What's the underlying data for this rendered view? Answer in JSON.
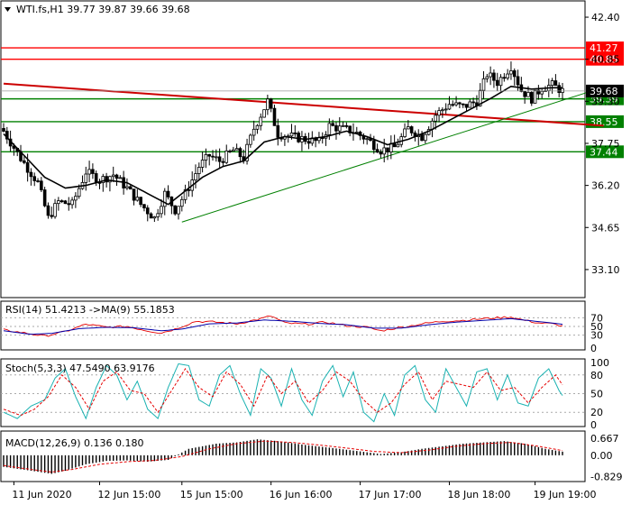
{
  "chart_data": {
    "type": "candlestick",
    "symbol_header": "WTI.fs,H1  39.77 39.87 39.66 39.68",
    "price_axis": {
      "ylim": [
        32.2,
        42.9
      ],
      "tick_labels": [
        "42.40",
        "40.85",
        "39.30",
        "37.75",
        "36.20",
        "34.65",
        "33.10"
      ],
      "tick_values": [
        42.4,
        40.85,
        39.3,
        37.75,
        36.2,
        34.65,
        33.1
      ],
      "current_price": "39.68"
    },
    "x_axis": {
      "time_labels": [
        "11 Jun 2020",
        "12 Jun 15:00",
        "15 Jun 15:00",
        "16 Jun 16:00",
        "17 Jun 17:00",
        "18 Jun 18:00",
        "19 Jun 19:00"
      ],
      "label_bar_index": [
        3,
        28,
        52,
        78,
        104,
        130,
        155
      ]
    },
    "levels": [
      {
        "label": "41.27",
        "value": 41.27,
        "color": "#ff0000"
      },
      {
        "label": "40.85",
        "value": 40.85,
        "color": "#ff0000"
      },
      {
        "label": "39.39",
        "value": 39.39,
        "color": "#008000"
      },
      {
        "label": "38.55",
        "value": 38.55,
        "color": "#008000"
      },
      {
        "label": "37.44",
        "value": 37.44,
        "color": "#008000"
      }
    ],
    "trendlines": [
      {
        "color": "#cc0000",
        "from": {
          "bar": 0,
          "price": 39.95
        },
        "to": {
          "bar": 175,
          "price": 38.4
        }
      },
      {
        "color": "#008000",
        "from": {
          "bar": 52,
          "price": 34.85
        },
        "to": {
          "bar": 172,
          "price": 39.7
        }
      }
    ],
    "close_anchors": [
      [
        0,
        38.2
      ],
      [
        5,
        37.2
      ],
      [
        10,
        36.3
      ],
      [
        13,
        35.0
      ],
      [
        16,
        35.6
      ],
      [
        20,
        35.5
      ],
      [
        24,
        36.7
      ],
      [
        28,
        36.4
      ],
      [
        32,
        36.6
      ],
      [
        36,
        36.1
      ],
      [
        40,
        35.5
      ],
      [
        44,
        35.0
      ],
      [
        47,
        35.9
      ],
      [
        50,
        35.3
      ],
      [
        53,
        35.9
      ],
      [
        57,
        36.9
      ],
      [
        60,
        37.3
      ],
      [
        63,
        37.1
      ],
      [
        67,
        37.5
      ],
      [
        70,
        37.2
      ],
      [
        73,
        38.3
      ],
      [
        77,
        39.3
      ],
      [
        80,
        38.1
      ],
      [
        84,
        38.0
      ],
      [
        88,
        37.9
      ],
      [
        92,
        37.8
      ],
      [
        95,
        38.4
      ],
      [
        98,
        38.3
      ],
      [
        102,
        38.2
      ],
      [
        106,
        37.9
      ],
      [
        110,
        37.5
      ],
      [
        114,
        37.6
      ],
      [
        118,
        38.3
      ],
      [
        122,
        38.0
      ],
      [
        126,
        38.8
      ],
      [
        130,
        39.2
      ],
      [
        134,
        39.1
      ],
      [
        138,
        39.3
      ],
      [
        141,
        40.3
      ],
      [
        144,
        40.0
      ],
      [
        148,
        40.6
      ],
      [
        151,
        39.7
      ],
      [
        154,
        39.4
      ],
      [
        157,
        39.8
      ],
      [
        160,
        39.9
      ],
      [
        163,
        39.68
      ]
    ],
    "ma_anchors": [
      [
        0,
        38.1
      ],
      [
        6,
        37.3
      ],
      [
        12,
        36.5
      ],
      [
        18,
        36.1
      ],
      [
        24,
        36.2
      ],
      [
        30,
        36.4
      ],
      [
        36,
        36.3
      ],
      [
        42,
        35.9
      ],
      [
        48,
        35.5
      ],
      [
        52,
        35.9
      ],
      [
        58,
        36.5
      ],
      [
        64,
        36.9
      ],
      [
        70,
        37.1
      ],
      [
        76,
        37.8
      ],
      [
        82,
        38.0
      ],
      [
        88,
        37.9
      ],
      [
        94,
        38.0
      ],
      [
        100,
        38.2
      ],
      [
        106,
        38.0
      ],
      [
        112,
        37.7
      ],
      [
        118,
        37.9
      ],
      [
        124,
        38.2
      ],
      [
        130,
        38.6
      ],
      [
        136,
        39.0
      ],
      [
        142,
        39.4
      ],
      [
        148,
        39.85
      ],
      [
        154,
        39.75
      ],
      [
        160,
        39.8
      ],
      [
        163,
        39.8
      ]
    ],
    "rsi": {
      "label": "RSI(14) 51.4213 ->MA(9) 55.1853",
      "ylim": [
        0,
        100
      ],
      "levels": [
        70,
        50,
        30
      ],
      "level_labels": [
        "70",
        "50",
        "30",
        "0"
      ],
      "rsi_anchors": [
        [
          0,
          42
        ],
        [
          6,
          35
        ],
        [
          12,
          28
        ],
        [
          18,
          38
        ],
        [
          24,
          55
        ],
        [
          30,
          48
        ],
        [
          36,
          50
        ],
        [
          42,
          40
        ],
        [
          46,
          35
        ],
        [
          50,
          44
        ],
        [
          56,
          62
        ],
        [
          62,
          60
        ],
        [
          68,
          56
        ],
        [
          74,
          66
        ],
        [
          78,
          74
        ],
        [
          82,
          58
        ],
        [
          88,
          55
        ],
        [
          94,
          60
        ],
        [
          100,
          52
        ],
        [
          106,
          48
        ],
        [
          110,
          40
        ],
        [
          116,
          48
        ],
        [
          122,
          56
        ],
        [
          128,
          62
        ],
        [
          134,
          64
        ],
        [
          140,
          68
        ],
        [
          144,
          70
        ],
        [
          148,
          72
        ],
        [
          152,
          64
        ],
        [
          156,
          58
        ],
        [
          160,
          56
        ],
        [
          163,
          51
        ]
      ],
      "ma_anchors": [
        [
          0,
          40
        ],
        [
          8,
          32
        ],
        [
          14,
          34
        ],
        [
          22,
          45
        ],
        [
          30,
          48
        ],
        [
          38,
          47
        ],
        [
          46,
          40
        ],
        [
          52,
          44
        ],
        [
          60,
          56
        ],
        [
          68,
          58
        ],
        [
          76,
          65
        ],
        [
          84,
          62
        ],
        [
          92,
          57
        ],
        [
          100,
          54
        ],
        [
          108,
          46
        ],
        [
          116,
          46
        ],
        [
          124,
          54
        ],
        [
          132,
          60
        ],
        [
          140,
          64
        ],
        [
          148,
          68
        ],
        [
          154,
          63
        ],
        [
          160,
          58
        ],
        [
          163,
          55
        ]
      ]
    },
    "stoch": {
      "label": "Stoch(5,3,3) 47.5490 63.9176",
      "ylim": [
        0,
        100
      ],
      "levels": [
        80,
        50,
        20
      ],
      "level_labels": [
        "100",
        "80",
        "50",
        "20",
        "0"
      ],
      "main_anchors": [
        [
          0,
          20
        ],
        [
          4,
          10
        ],
        [
          8,
          30
        ],
        [
          12,
          40
        ],
        [
          15,
          75
        ],
        [
          18,
          90
        ],
        [
          21,
          45
        ],
        [
          24,
          10
        ],
        [
          27,
          60
        ],
        [
          30,
          95
        ],
        [
          33,
          80
        ],
        [
          36,
          40
        ],
        [
          39,
          70
        ],
        [
          42,
          25
        ],
        [
          45,
          10
        ],
        [
          48,
          60
        ],
        [
          51,
          98
        ],
        [
          54,
          95
        ],
        [
          57,
          40
        ],
        [
          60,
          30
        ],
        [
          63,
          80
        ],
        [
          66,
          95
        ],
        [
          69,
          50
        ],
        [
          72,
          15
        ],
        [
          75,
          90
        ],
        [
          78,
          75
        ],
        [
          81,
          30
        ],
        [
          84,
          90
        ],
        [
          87,
          40
        ],
        [
          90,
          15
        ],
        [
          93,
          70
        ],
        [
          96,
          95
        ],
        [
          99,
          45
        ],
        [
          102,
          85
        ],
        [
          105,
          20
        ],
        [
          108,
          5
        ],
        [
          111,
          50
        ],
        [
          114,
          15
        ],
        [
          117,
          80
        ],
        [
          120,
          95
        ],
        [
          123,
          40
        ],
        [
          126,
          20
        ],
        [
          129,
          90
        ],
        [
          132,
          60
        ],
        [
          135,
          30
        ],
        [
          138,
          85
        ],
        [
          141,
          90
        ],
        [
          144,
          40
        ],
        [
          147,
          80
        ],
        [
          150,
          35
        ],
        [
          153,
          30
        ],
        [
          156,
          75
        ],
        [
          159,
          90
        ],
        [
          162,
          55
        ],
        [
          163,
          47
        ]
      ],
      "signal_anchors": [
        [
          0,
          25
        ],
        [
          5,
          15
        ],
        [
          9,
          25
        ],
        [
          13,
          45
        ],
        [
          17,
          80
        ],
        [
          21,
          60
        ],
        [
          25,
          25
        ],
        [
          29,
          70
        ],
        [
          33,
          85
        ],
        [
          37,
          55
        ],
        [
          41,
          50
        ],
        [
          45,
          20
        ],
        [
          49,
          55
        ],
        [
          53,
          90
        ],
        [
          57,
          60
        ],
        [
          61,
          45
        ],
        [
          65,
          85
        ],
        [
          69,
          65
        ],
        [
          73,
          30
        ],
        [
          77,
          80
        ],
        [
          81,
          50
        ],
        [
          85,
          70
        ],
        [
          89,
          35
        ],
        [
          93,
          55
        ],
        [
          97,
          85
        ],
        [
          101,
          70
        ],
        [
          105,
          40
        ],
        [
          109,
          20
        ],
        [
          113,
          35
        ],
        [
          117,
          65
        ],
        [
          121,
          85
        ],
        [
          125,
          40
        ],
        [
          129,
          70
        ],
        [
          133,
          65
        ],
        [
          137,
          60
        ],
        [
          141,
          85
        ],
        [
          145,
          55
        ],
        [
          149,
          60
        ],
        [
          153,
          35
        ],
        [
          157,
          60
        ],
        [
          161,
          80
        ],
        [
          163,
          64
        ]
      ]
    },
    "macd": {
      "label": "MACD(12,26,9) 0.136 0.180",
      "tick_labels": [
        "0.667",
        "0.00",
        "-0.829"
      ],
      "tick_values": [
        0.667,
        0.0,
        -0.829
      ],
      "ylim": [
        -0.95,
        0.8
      ],
      "hist_anchors": [
        [
          0,
          -0.45
        ],
        [
          8,
          -0.6
        ],
        [
          14,
          -0.72
        ],
        [
          18,
          -0.6
        ],
        [
          24,
          -0.35
        ],
        [
          30,
          -0.22
        ],
        [
          36,
          -0.2
        ],
        [
          42,
          -0.25
        ],
        [
          48,
          -0.18
        ],
        [
          54,
          0.25
        ],
        [
          62,
          0.45
        ],
        [
          68,
          0.5
        ],
        [
          74,
          0.62
        ],
        [
          80,
          0.55
        ],
        [
          88,
          0.4
        ],
        [
          96,
          0.28
        ],
        [
          104,
          0.15
        ],
        [
          110,
          0.05
        ],
        [
          116,
          0.12
        ],
        [
          122,
          0.25
        ],
        [
          128,
          0.35
        ],
        [
          134,
          0.45
        ],
        [
          140,
          0.5
        ],
        [
          146,
          0.55
        ],
        [
          152,
          0.45
        ],
        [
          158,
          0.25
        ],
        [
          163,
          0.14
        ]
      ],
      "signal_anchors": [
        [
          0,
          -0.4
        ],
        [
          8,
          -0.55
        ],
        [
          14,
          -0.65
        ],
        [
          20,
          -0.55
        ],
        [
          28,
          -0.35
        ],
        [
          36,
          -0.25
        ],
        [
          44,
          -0.2
        ],
        [
          52,
          -0.05
        ],
        [
          60,
          0.25
        ],
        [
          68,
          0.45
        ],
        [
          76,
          0.55
        ],
        [
          84,
          0.5
        ],
        [
          92,
          0.4
        ],
        [
          100,
          0.28
        ],
        [
          108,
          0.15
        ],
        [
          116,
          0.1
        ],
        [
          124,
          0.2
        ],
        [
          132,
          0.35
        ],
        [
          140,
          0.45
        ],
        [
          148,
          0.5
        ],
        [
          156,
          0.35
        ],
        [
          163,
          0.18
        ]
      ]
    }
  }
}
